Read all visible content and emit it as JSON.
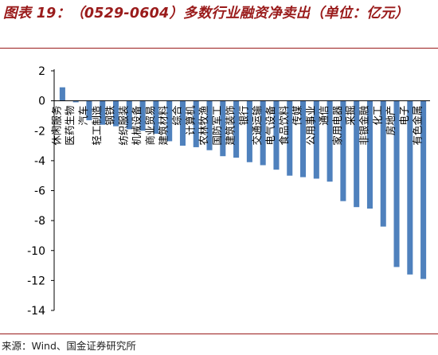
{
  "header": {
    "title": "图表 19：（0529-0604）多数行业融资净卖出（单位：亿元）"
  },
  "footer": {
    "source": "来源：Wind、国金证券研究所"
  },
  "colors": {
    "bar": "#4f81bd",
    "title": "#9a1b1b",
    "axis": "#000000",
    "text": "#000000"
  },
  "chart_data": {
    "type": "bar",
    "title": "图表 19：（0529-0604）多数行业融资净卖出（单位：亿元）",
    "xlabel": "",
    "ylabel": "",
    "ylim": [
      -14,
      2
    ],
    "yticks": [
      2,
      0,
      -2,
      -4,
      -6,
      -8,
      -10,
      -12,
      -14
    ],
    "grid": false,
    "legend": "none",
    "categories": [
      "休闲服务",
      "医药生物",
      "汽车",
      "轻工制造",
      "钢铁",
      "纺织服装",
      "机械设备",
      "商业贸易",
      "建筑材料",
      "综合",
      "计算机",
      "农林牧渔",
      "国防军工",
      "建筑装饰",
      "银行",
      "交通运输",
      "电气设备",
      "食品饮料",
      "传媒",
      "公用事业",
      "通信",
      "家用电器",
      "采掘",
      "非银金融",
      "化工",
      "房地产",
      "电子",
      "有色金属"
    ],
    "values": [
      0.9,
      -0.1,
      -1.3,
      -1.6,
      -1.7,
      -1.9,
      -2.0,
      -2.2,
      -2.7,
      -3.0,
      -3.1,
      -3.3,
      -3.7,
      -3.8,
      -4.1,
      -4.3,
      -4.6,
      -5.0,
      -5.1,
      -5.2,
      -5.4,
      -6.7,
      -7.1,
      -7.2,
      -8.4,
      -11.1,
      -11.6,
      -11.9
    ]
  }
}
